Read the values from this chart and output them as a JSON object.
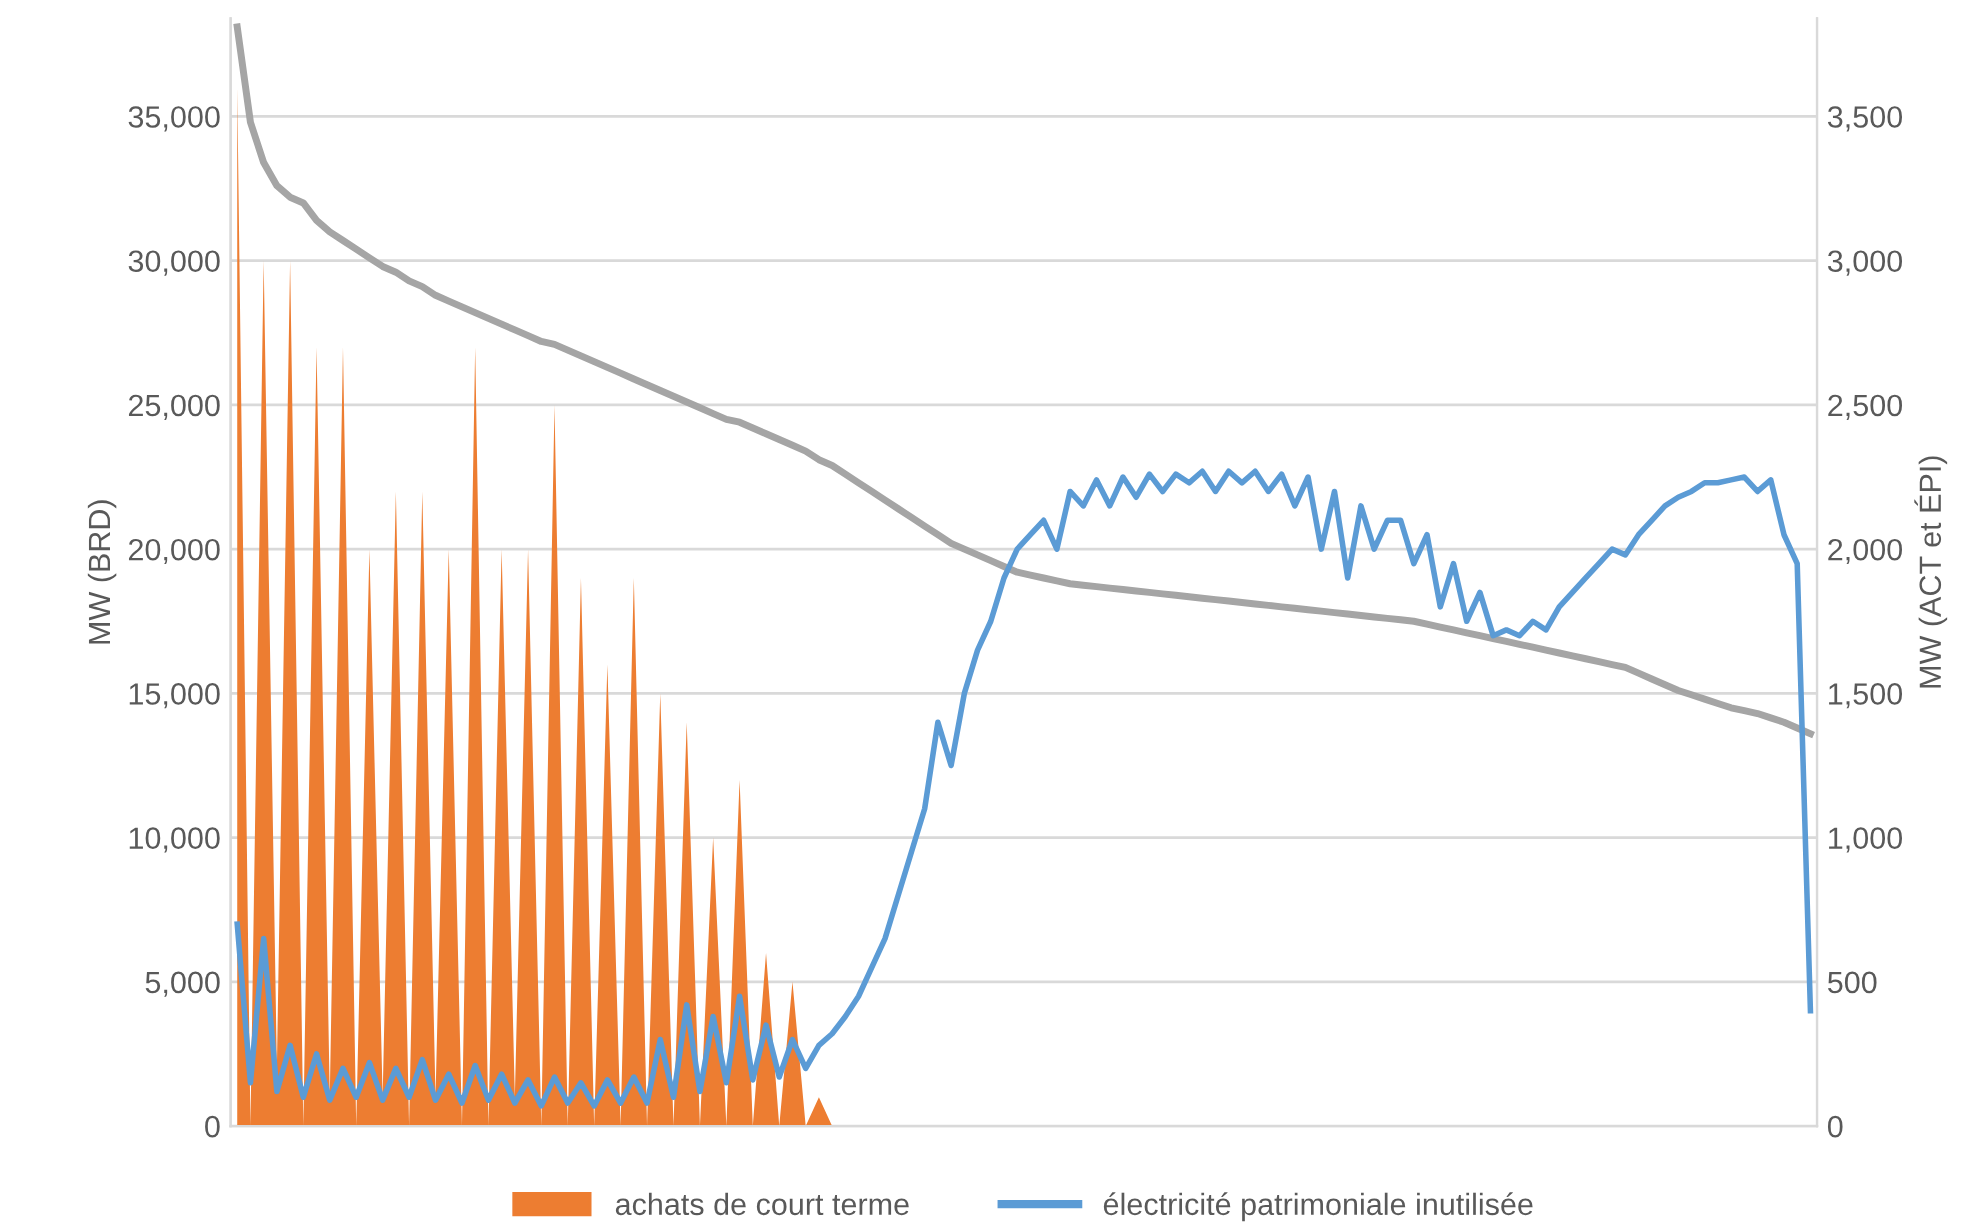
{
  "chart_data": {
    "type": "line",
    "ylabel": "MW (BRD)",
    "y2label": "MW (ACT et ÉPI)",
    "categories": [
      null,
      null,
      null,
      null,
      null,
      null,
      null,
      null,
      null,
      null,
      null,
      null,
      null,
      null,
      null,
      null,
      null,
      null,
      null,
      null,
      null,
      null,
      null,
      null,
      null,
      null,
      null,
      null,
      null,
      null,
      null,
      null,
      null,
      null,
      null,
      null,
      null,
      null,
      null,
      null,
      null,
      null,
      null,
      null,
      null,
      null,
      null,
      null,
      null,
      null,
      null,
      null,
      null,
      null,
      null,
      null,
      null,
      null,
      null,
      null,
      null,
      null,
      null,
      null,
      null,
      null,
      null,
      null,
      null,
      null,
      null,
      null,
      null,
      null,
      null,
      null,
      null,
      null,
      null,
      null,
      null,
      null,
      null,
      null,
      null,
      null,
      null,
      null,
      null,
      null,
      null,
      null,
      null,
      null,
      null,
      null,
      null,
      null,
      null,
      null,
      null,
      null,
      null,
      null,
      null,
      null,
      null,
      null,
      null,
      null,
      null,
      null,
      null,
      null,
      null,
      null,
      null,
      null,
      null,
      null
    ],
    "series": [
      {
        "name": "achats de court terme",
        "type": "area",
        "axis": "y2",
        "color": "#ed7d31",
        "values": [
          3600,
          0,
          3000,
          200,
          3000,
          0,
          2700,
          100,
          2700,
          0,
          2000,
          100,
          2200,
          0,
          2200,
          100,
          2000,
          0,
          2700,
          0,
          2000,
          100,
          2000,
          0,
          2500,
          0,
          1900,
          0,
          1600,
          0,
          1900,
          0,
          1500,
          0,
          1400,
          0,
          1000,
          0,
          1200,
          0,
          600,
          0,
          500,
          0,
          100,
          0,
          0,
          0,
          0,
          0,
          0,
          0,
          0,
          0,
          0,
          0,
          0,
          0,
          0,
          0,
          0,
          0,
          0,
          0,
          0,
          0,
          0,
          0,
          0,
          0,
          0,
          0,
          0,
          0,
          0,
          0,
          0,
          0,
          0,
          0,
          0,
          0,
          0,
          0,
          0,
          0,
          0,
          0,
          0,
          0,
          0,
          0,
          0,
          0,
          0,
          0,
          0,
          0,
          0,
          0,
          0,
          0,
          0,
          0,
          0,
          0,
          0,
          0,
          0,
          0,
          0,
          0,
          0,
          0,
          0,
          0,
          0,
          0,
          0,
          0
        ]
      },
      {
        "name": "électricité patrimoniale inutilisée",
        "axis": "y2",
        "color": "#5b9bd5",
        "values": [
          700,
          150,
          650,
          120,
          280,
          100,
          250,
          90,
          200,
          100,
          220,
          90,
          200,
          100,
          230,
          90,
          180,
          80,
          210,
          90,
          180,
          80,
          160,
          70,
          170,
          80,
          150,
          70,
          160,
          80,
          170,
          80,
          300,
          100,
          420,
          120,
          380,
          150,
          450,
          160,
          350,
          170,
          300,
          200,
          280,
          320,
          380,
          450,
          550,
          650,
          800,
          950,
          1100,
          1400,
          1250,
          1500,
          1650,
          1750,
          1900,
          2000,
          2050,
          2100,
          2000,
          2200,
          2150,
          2240,
          2150,
          2250,
          2180,
          2260,
          2200,
          2260,
          2230,
          2270,
          2200,
          2270,
          2230,
          2270,
          2200,
          2260,
          2150,
          2250,
          2000,
          2200,
          1900,
          2150,
          2000,
          2100,
          2100,
          1950,
          2050,
          1800,
          1950,
          1750,
          1850,
          1700,
          1720,
          1700,
          1750,
          1720,
          1800,
          1850,
          1900,
          1950,
          2000,
          1980,
          2050,
          2100,
          2150,
          2180,
          2200,
          2230,
          2230,
          2240,
          2250,
          2200,
          2240,
          2050,
          1950,
          400
        ]
      },
      {
        "axis": "y",
        "color": "#a5a5a5",
        "values": [
          38100,
          34800,
          33400,
          32600,
          32200,
          32000,
          31400,
          31000,
          30700,
          30400,
          30100,
          29800,
          29600,
          29300,
          29100,
          28800,
          28600,
          28400,
          28200,
          28000,
          27800,
          27600,
          27400,
          27200,
          27100,
          26900,
          26700,
          26500,
          26300,
          26100,
          25900,
          25700,
          25500,
          25300,
          25100,
          24900,
          24700,
          24500,
          24400,
          24200,
          24000,
          23800,
          23600,
          23400,
          23100,
          22900,
          22600,
          22300,
          22000,
          21700,
          21400,
          21100,
          20800,
          20500,
          20200,
          20000,
          19800,
          19600,
          19400,
          19200,
          19100,
          19000,
          18900,
          18800,
          18750,
          18700,
          18650,
          18600,
          18550,
          18500,
          18450,
          18400,
          18350,
          18300,
          18250,
          18200,
          18150,
          18100,
          18050,
          18000,
          17950,
          17900,
          17850,
          17800,
          17750,
          17700,
          17650,
          17600,
          17550,
          17500,
          17400,
          17300,
          17200,
          17100,
          17000,
          16900,
          16800,
          16700,
          16600,
          16500,
          16400,
          16300,
          16200,
          16100,
          16000,
          15900,
          15700,
          15500,
          15300,
          15100,
          14950,
          14800,
          14650,
          14500,
          14400,
          14300,
          14150,
          14000,
          13800,
          13600
        ]
      }
    ],
    "ylim": [
      0,
      38400
    ],
    "yticks": [
      0,
      {
        "value": 5000,
        "label": "5,000"
      },
      {
        "value": 10000,
        "label": "10,000"
      },
      {
        "value": 15000,
        "label": "15,000"
      },
      {
        "value": 20000,
        "label": "20,000"
      },
      {
        "value": 25000,
        "label": "25,000"
      },
      {
        "value": 30000,
        "label": "30,000"
      },
      {
        "value": 35000,
        "label": "35,000"
      }
    ],
    "y2lim": [
      0,
      3840
    ],
    "y2ticks": [
      0,
      500,
      {
        "value": 1000,
        "label": "1,000"
      },
      {
        "value": 1500,
        "label": "1,500"
      },
      {
        "value": 2000,
        "label": "2,000"
      },
      {
        "value": 2500,
        "label": "2,500"
      },
      {
        "value": 3000,
        "label": "3,000"
      },
      {
        "value": 3500,
        "label": "3,500"
      }
    ],
    "grid": "y",
    "legend": "bottom"
  }
}
